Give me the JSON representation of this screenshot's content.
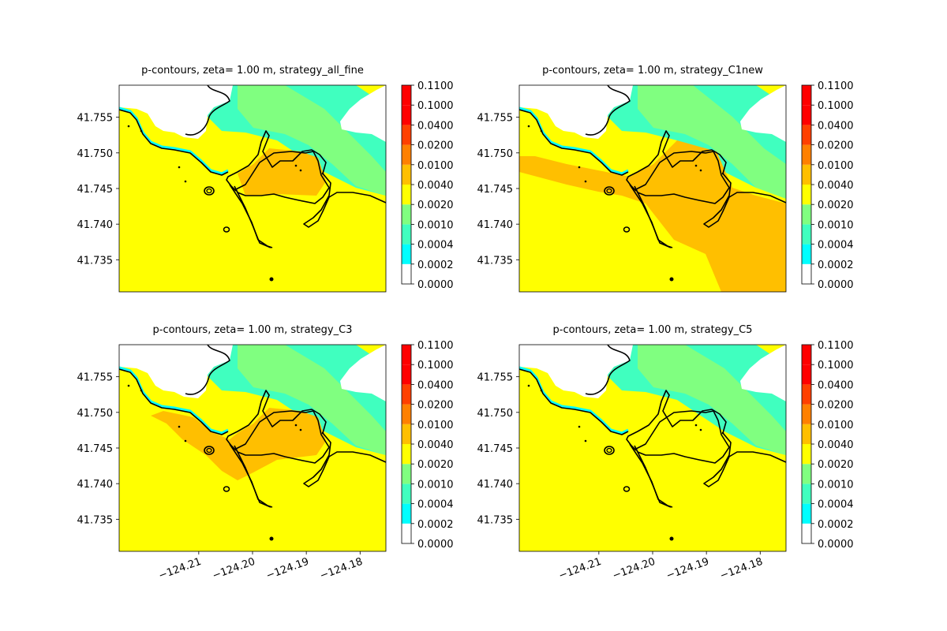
{
  "chart_data": [
    {
      "type": "contour",
      "title": "p-contours, zeta= 1.00 m, strategy_all_fine",
      "y_ticks": [
        41.735,
        41.74,
        41.745,
        41.75,
        41.755
      ],
      "x_ticks": [],
      "xlim": [
        -124.2248,
        -124.1752
      ],
      "ylim": [
        41.7305,
        41.7595
      ],
      "colorbar": {
        "levels": [
          "0.0000",
          "0.0002",
          "0.0004",
          "0.0010",
          "0.0020",
          "0.0040",
          "0.0100",
          "0.0200",
          "0.0400",
          "0.1000",
          "0.1100"
        ],
        "colors": [
          "#ffffff",
          "#00ffff",
          "#40ffbf",
          "#80ff80",
          "#ffff00",
          "#ffbf00",
          "#ff8000",
          "#ff4000",
          "#ff0000",
          "#ff0000"
        ]
      }
    },
    {
      "type": "contour",
      "title": "p-contours, zeta= 1.00 m, strategy_C1new",
      "y_ticks": [
        41.735,
        41.74,
        41.745,
        41.75,
        41.755
      ],
      "x_ticks": [],
      "xlim": [
        -124.2248,
        -124.1752
      ],
      "ylim": [
        41.7305,
        41.7595
      ],
      "colorbar": {
        "levels": [
          "0.0000",
          "0.0002",
          "0.0004",
          "0.0010",
          "0.0020",
          "0.0040",
          "0.0100",
          "0.0200",
          "0.0400",
          "0.1000",
          "0.1100"
        ],
        "colors": [
          "#ffffff",
          "#00ffff",
          "#40ffbf",
          "#80ff80",
          "#ffff00",
          "#ffbf00",
          "#ff8000",
          "#ff4000",
          "#ff0000",
          "#ff0000"
        ]
      }
    },
    {
      "type": "contour",
      "title": "p-contours, zeta= 1.00 m, strategy_C3",
      "y_ticks": [
        41.735,
        41.74,
        41.745,
        41.75,
        41.755
      ],
      "x_ticks": [
        -124.21,
        -124.2,
        -124.19,
        -124.18
      ],
      "x_tick_labels": [
        "−124.21",
        "−124.20",
        "−124.19",
        "−124.18"
      ],
      "xlim": [
        -124.2248,
        -124.1752
      ],
      "ylim": [
        41.7305,
        41.7595
      ],
      "colorbar": {
        "levels": [
          "0.0000",
          "0.0002",
          "0.0004",
          "0.0010",
          "0.0020",
          "0.0040",
          "0.0100",
          "0.0200",
          "0.0400",
          "0.1000",
          "0.1100"
        ],
        "colors": [
          "#ffffff",
          "#00ffff",
          "#40ffbf",
          "#80ff80",
          "#ffff00",
          "#ffbf00",
          "#ff8000",
          "#ff4000",
          "#ff0000",
          "#ff0000"
        ]
      }
    },
    {
      "type": "contour",
      "title": "p-contours, zeta= 1.00 m, strategy_C5",
      "y_ticks": [
        41.735,
        41.74,
        41.745,
        41.75,
        41.755
      ],
      "x_ticks": [
        -124.21,
        -124.2,
        -124.19,
        -124.18
      ],
      "x_tick_labels": [
        "−124.21",
        "−124.20",
        "−124.19",
        "−124.18"
      ],
      "xlim": [
        -124.2248,
        -124.1752
      ],
      "ylim": [
        41.7305,
        41.7595
      ],
      "colorbar": {
        "levels": [
          "0.0000",
          "0.0002",
          "0.0004",
          "0.0010",
          "0.0020",
          "0.0040",
          "0.0100",
          "0.0200",
          "0.0400",
          "0.1000",
          "0.1100"
        ],
        "colors": [
          "#ffffff",
          "#00ffff",
          "#40ffbf",
          "#80ff80",
          "#ffff00",
          "#ffbf00",
          "#ff8000",
          "#ff4000",
          "#ff0000",
          "#ff0000"
        ]
      }
    }
  ]
}
